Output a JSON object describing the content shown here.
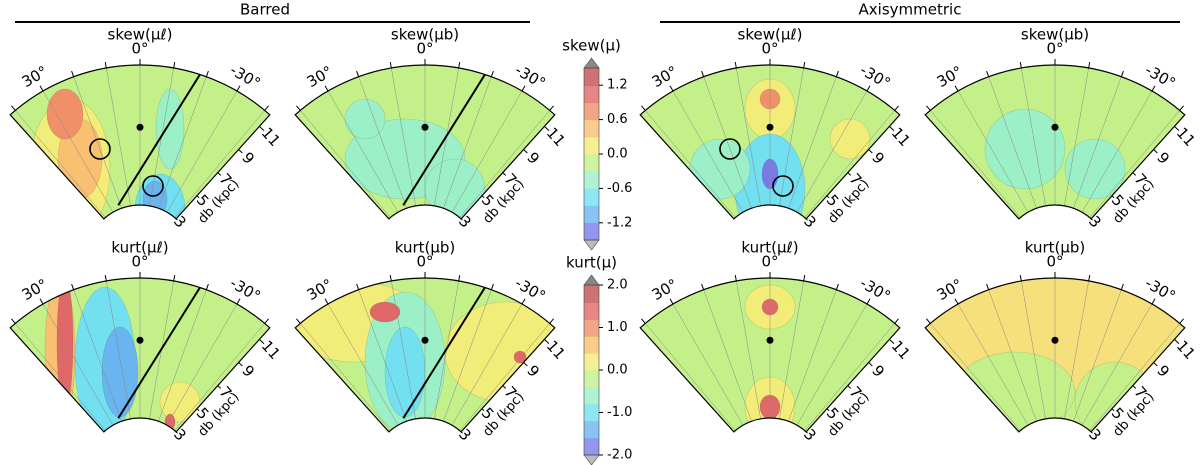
{
  "groups": [
    {
      "title": "Barred"
    },
    {
      "title": "Axisymmetric"
    }
  ],
  "panels": [
    {
      "title": "skew(μℓ)"
    },
    {
      "title": "skew(μb)"
    },
    {
      "title": "skew(μℓ)"
    },
    {
      "title": "skew(μb)"
    },
    {
      "title": "kurt(μℓ)"
    },
    {
      "title": "kurt(μb)"
    },
    {
      "title": "kurt(μℓ)"
    },
    {
      "title": "kurt(μb)"
    }
  ],
  "angle_labels": [
    {
      "value": 30,
      "label": "30°"
    },
    {
      "value": 0,
      "label": "0°"
    },
    {
      "value": -30,
      "label": "-30°"
    }
  ],
  "distance_labels": [
    3,
    5,
    7,
    9,
    11
  ],
  "distance_axis_label": "db (kpc)",
  "colorbars": [
    {
      "label": "skew(μ)",
      "ticks": [
        1.2,
        0.6,
        {
          "value": 0,
          "label": "0.0"
        },
        -0.6,
        -1.2
      ]
    },
    {
      "label": "kurt(μ)",
      "ticks": [
        {
          "value": 2,
          "label": "2.0"
        },
        {
          "value": 1,
          "label": "1.0"
        },
        {
          "value": 0,
          "label": "0.0"
        },
        {
          "value": -1,
          "label": "-1.0"
        },
        {
          "value": -2,
          "label": "-2.0"
        }
      ]
    }
  ]
}
